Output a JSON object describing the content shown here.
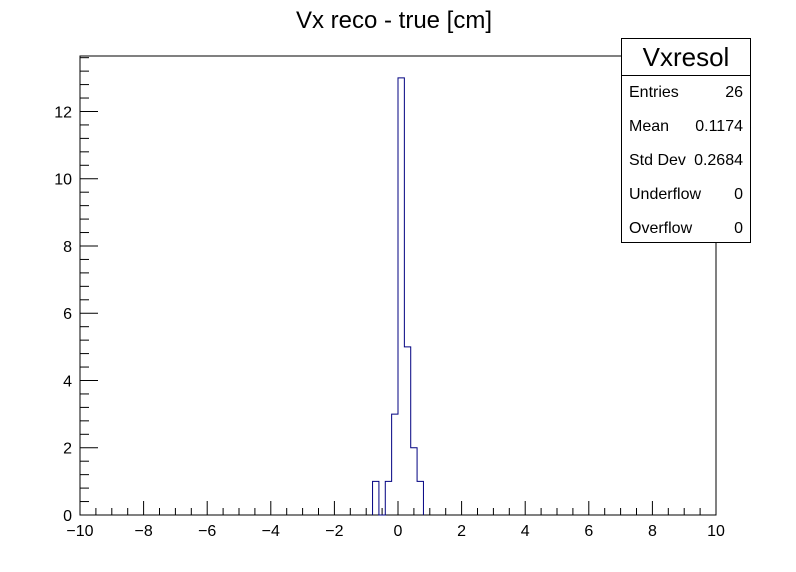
{
  "chart_data": {
    "type": "bar",
    "title": "Vx reco - true [cm]",
    "xlabel": "",
    "ylabel": "",
    "xlim": [
      -10,
      10
    ],
    "ylim": [
      0,
      13.65
    ],
    "bin_width": 0.2,
    "x_ticks": [
      -10,
      -8,
      -6,
      -4,
      -2,
      0,
      2,
      4,
      6,
      8,
      10
    ],
    "y_ticks": [
      0,
      2,
      4,
      6,
      8,
      10,
      12
    ],
    "bins": [
      {
        "x0": -0.8,
        "x1": -0.6,
        "value": 1
      },
      {
        "x0": -0.6,
        "x1": -0.4,
        "value": 0
      },
      {
        "x0": -0.4,
        "x1": -0.2,
        "value": 1
      },
      {
        "x0": -0.2,
        "x1": 0.0,
        "value": 3
      },
      {
        "x0": 0.0,
        "x1": 0.2,
        "value": 13
      },
      {
        "x0": 0.2,
        "x1": 0.4,
        "value": 5
      },
      {
        "x0": 0.4,
        "x1": 0.6,
        "value": 2
      },
      {
        "x0": 0.6,
        "x1": 0.8,
        "value": 1
      }
    ],
    "line_color": "#000080",
    "grid": false
  },
  "stats": {
    "name": "Vxresol",
    "rows": [
      {
        "label": "Entries",
        "value": "26"
      },
      {
        "label": "Mean",
        "value": "0.1174"
      },
      {
        "label": "Std Dev",
        "value": "0.2684"
      },
      {
        "label": "Underflow",
        "value": "0"
      },
      {
        "label": "Overflow",
        "value": "0"
      }
    ]
  }
}
